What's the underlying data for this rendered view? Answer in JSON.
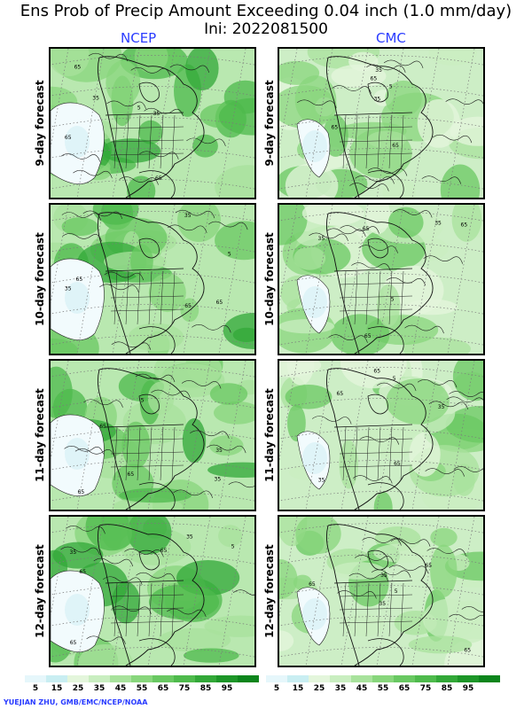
{
  "header": {
    "title": "Ens Prob of Precip Amount Exceeding 0.04 inch (1.0 mm/day)",
    "init": "Ini: 2022081500"
  },
  "columns": [
    {
      "label": "NCEP"
    },
    {
      "label": "CMC"
    }
  ],
  "rows": [
    {
      "label": "9-day forecast"
    },
    {
      "label": "10-day forecast"
    },
    {
      "label": "11-day forecast"
    },
    {
      "label": "12-day forecast"
    }
  ],
  "contour_labels": [
    "65",
    "35",
    "65",
    "5"
  ],
  "legend": {
    "colors": [
      "#e6f7fb",
      "#c9eef2",
      "#e4f6dc",
      "#c9eec0",
      "#a8e29c",
      "#88d67c",
      "#69c862",
      "#4eba4c",
      "#32a838",
      "#1d9628",
      "#0c851c"
    ],
    "labels": [
      "5",
      "15",
      "25",
      "35",
      "45",
      "55",
      "65",
      "75",
      "85",
      "95"
    ]
  },
  "credit": "YUEJIAN ZHU, GMB/EMC/NCEP/NOAA"
}
